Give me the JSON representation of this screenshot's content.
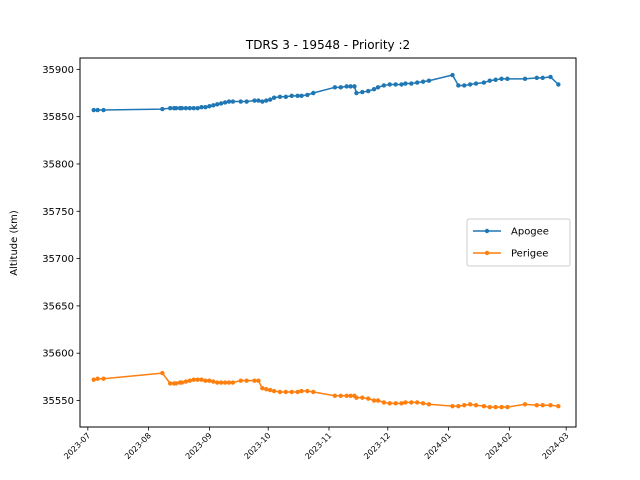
{
  "chart_data": {
    "type": "line",
    "title": "TDRS 3 - 19548 - Priority :2",
    "xlabel": "",
    "ylabel": "Altitude (km)",
    "ylim": [
      35522,
      35912
    ],
    "xlim": [
      "2023-06-27",
      "2024-03-06"
    ],
    "yticks": [
      35550,
      35600,
      35650,
      35700,
      35750,
      35800,
      35850,
      35900
    ],
    "xticks": [
      "2023-07",
      "2023-08",
      "2023-09",
      "2023-10",
      "2023-11",
      "2023-12",
      "2024-01",
      "2024-02",
      "2024-03"
    ],
    "grid": false,
    "legend_position": "center-right",
    "series": [
      {
        "name": "Apogee",
        "color": "#1f77b4",
        "points": [
          [
            "2023-07-04",
            35857
          ],
          [
            "2023-07-06",
            35857
          ],
          [
            "2023-07-09",
            35857
          ],
          [
            "2023-08-08",
            35858
          ],
          [
            "2023-08-12",
            35859
          ],
          [
            "2023-08-14",
            35859
          ],
          [
            "2023-08-15",
            35859
          ],
          [
            "2023-08-17",
            35859
          ],
          [
            "2023-08-18",
            35859
          ],
          [
            "2023-08-20",
            35859
          ],
          [
            "2023-08-22",
            35859
          ],
          [
            "2023-08-24",
            35859
          ],
          [
            "2023-08-26",
            35859
          ],
          [
            "2023-08-28",
            35860
          ],
          [
            "2023-08-30",
            35860
          ],
          [
            "2023-09-01",
            35861
          ],
          [
            "2023-09-03",
            35862
          ],
          [
            "2023-09-05",
            35863
          ],
          [
            "2023-09-07",
            35864
          ],
          [
            "2023-09-09",
            35865
          ],
          [
            "2023-09-11",
            35866
          ],
          [
            "2023-09-13",
            35866
          ],
          [
            "2023-09-17",
            35866
          ],
          [
            "2023-09-20",
            35866
          ],
          [
            "2023-09-24",
            35867
          ],
          [
            "2023-09-26",
            35867
          ],
          [
            "2023-09-28",
            35866
          ],
          [
            "2023-09-30",
            35867
          ],
          [
            "2023-10-02",
            35868
          ],
          [
            "2023-10-04",
            35870
          ],
          [
            "2023-10-07",
            35871
          ],
          [
            "2023-10-10",
            35871
          ],
          [
            "2023-10-13",
            35872
          ],
          [
            "2023-10-16",
            35872
          ],
          [
            "2023-10-18",
            35872
          ],
          [
            "2023-10-21",
            35873
          ],
          [
            "2023-10-24",
            35875
          ],
          [
            "2023-11-04",
            35881
          ],
          [
            "2023-11-07",
            35881
          ],
          [
            "2023-11-10",
            35882
          ],
          [
            "2023-11-12",
            35882
          ],
          [
            "2023-11-14",
            35882
          ],
          [
            "2023-11-15",
            35875
          ],
          [
            "2023-11-18",
            35876
          ],
          [
            "2023-11-21",
            35877
          ],
          [
            "2023-11-24",
            35879
          ],
          [
            "2023-11-26",
            35881
          ],
          [
            "2023-11-29",
            35883
          ],
          [
            "2023-12-02",
            35884
          ],
          [
            "2023-12-05",
            35884
          ],
          [
            "2023-12-08",
            35884
          ],
          [
            "2023-12-10",
            35885
          ],
          [
            "2023-12-13",
            35885
          ],
          [
            "2023-12-16",
            35886
          ],
          [
            "2023-12-19",
            35887
          ],
          [
            "2023-12-22",
            35888
          ],
          [
            "2024-01-03",
            35894
          ],
          [
            "2024-01-06",
            35883
          ],
          [
            "2024-01-09",
            35883
          ],
          [
            "2024-01-12",
            35884
          ],
          [
            "2024-01-15",
            35885
          ],
          [
            "2024-01-19",
            35886
          ],
          [
            "2024-01-22",
            35888
          ],
          [
            "2024-01-25",
            35889
          ],
          [
            "2024-01-28",
            35890
          ],
          [
            "2024-01-31",
            35890
          ],
          [
            "2024-02-09",
            35890
          ],
          [
            "2024-02-15",
            35891
          ],
          [
            "2024-02-18",
            35891
          ],
          [
            "2024-02-22",
            35892
          ],
          [
            "2024-02-26",
            35884
          ]
        ]
      },
      {
        "name": "Perigee",
        "color": "#ff7f0e",
        "points": [
          [
            "2023-07-04",
            35572
          ],
          [
            "2023-07-06",
            35573
          ],
          [
            "2023-07-09",
            35573
          ],
          [
            "2023-08-08",
            35579
          ],
          [
            "2023-08-12",
            35568
          ],
          [
            "2023-08-14",
            35568
          ],
          [
            "2023-08-15",
            35568
          ],
          [
            "2023-08-17",
            35569
          ],
          [
            "2023-08-18",
            35569
          ],
          [
            "2023-08-20",
            35570
          ],
          [
            "2023-08-22",
            35571
          ],
          [
            "2023-08-24",
            35572
          ],
          [
            "2023-08-26",
            35572
          ],
          [
            "2023-08-28",
            35572
          ],
          [
            "2023-08-30",
            35571
          ],
          [
            "2023-09-01",
            35571
          ],
          [
            "2023-09-03",
            35570
          ],
          [
            "2023-09-05",
            35569
          ],
          [
            "2023-09-07",
            35569
          ],
          [
            "2023-09-09",
            35569
          ],
          [
            "2023-09-11",
            35569
          ],
          [
            "2023-09-13",
            35569
          ],
          [
            "2023-09-17",
            35571
          ],
          [
            "2023-09-20",
            35571
          ],
          [
            "2023-09-24",
            35571
          ],
          [
            "2023-09-26",
            35571
          ],
          [
            "2023-09-28",
            35563
          ],
          [
            "2023-09-30",
            35562
          ],
          [
            "2023-10-02",
            35561
          ],
          [
            "2023-10-04",
            35560
          ],
          [
            "2023-10-07",
            35559
          ],
          [
            "2023-10-10",
            35559
          ],
          [
            "2023-10-13",
            35559
          ],
          [
            "2023-10-16",
            35559
          ],
          [
            "2023-10-18",
            35560
          ],
          [
            "2023-10-21",
            35560
          ],
          [
            "2023-10-24",
            35559
          ],
          [
            "2023-11-04",
            35555
          ],
          [
            "2023-11-07",
            35555
          ],
          [
            "2023-11-10",
            35555
          ],
          [
            "2023-11-12",
            35555
          ],
          [
            "2023-11-14",
            35555
          ],
          [
            "2023-11-15",
            35553
          ],
          [
            "2023-11-18",
            35553
          ],
          [
            "2023-11-21",
            35552
          ],
          [
            "2023-11-24",
            35550
          ],
          [
            "2023-11-26",
            35550
          ],
          [
            "2023-11-29",
            35548
          ],
          [
            "2023-12-02",
            35547
          ],
          [
            "2023-12-05",
            35547
          ],
          [
            "2023-12-08",
            35547
          ],
          [
            "2023-12-10",
            35548
          ],
          [
            "2023-12-13",
            35548
          ],
          [
            "2023-12-16",
            35548
          ],
          [
            "2023-12-19",
            35547
          ],
          [
            "2023-12-22",
            35546
          ],
          [
            "2024-01-03",
            35544
          ],
          [
            "2024-01-06",
            35544
          ],
          [
            "2024-01-09",
            35545
          ],
          [
            "2024-01-12",
            35546
          ],
          [
            "2024-01-15",
            35545
          ],
          [
            "2024-01-19",
            35544
          ],
          [
            "2024-01-22",
            35543
          ],
          [
            "2024-01-25",
            35543
          ],
          [
            "2024-01-28",
            35543
          ],
          [
            "2024-01-31",
            35543
          ],
          [
            "2024-02-09",
            35546
          ],
          [
            "2024-02-15",
            35545
          ],
          [
            "2024-02-18",
            35545
          ],
          [
            "2024-02-22",
            35545
          ],
          [
            "2024-02-26",
            35544
          ]
        ]
      }
    ]
  }
}
